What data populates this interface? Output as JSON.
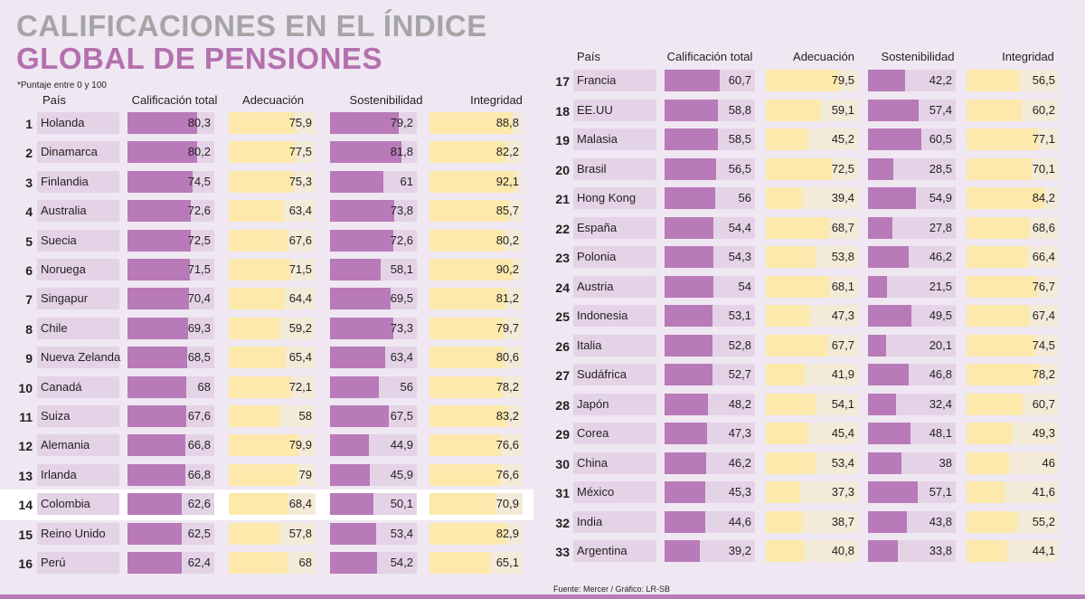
{
  "title_line1": "CALIFICACIONES EN EL ÍNDICE",
  "title_line2": "GLOBAL DE PENSIONES",
  "note": "*Puntaje entre 0 y 100",
  "source": "Fuente:  Mercer  / Gráfico: LR-SB",
  "highlight": "Colombia",
  "colors": {
    "background": "#efe7f1",
    "purple": "#b87ab8",
    "purple_light": "#e4d3e6",
    "yellow": "#fce9ab",
    "yellow_light": "#f3ead8",
    "title_gray": "#a5a5a5",
    "title_purple": "#b470ae"
  },
  "chart_data": {
    "type": "table",
    "title": "Calificaciones en el Índice Global de Pensiones",
    "scale": [
      0,
      100
    ],
    "columns": [
      "País",
      "Calificación total",
      "Adecuación",
      "Sostenibilidad",
      "Integridad"
    ],
    "rows": [
      {
        "rank": "1",
        "country": "Holanda",
        "values": [
          "80,3",
          "75,9",
          "79,2",
          "88,8"
        ]
      },
      {
        "rank": "2",
        "country": "Dinamarca",
        "values": [
          "80,2",
          "77,5",
          "81,8",
          "82,2"
        ]
      },
      {
        "rank": "3",
        "country": "Finlandia",
        "values": [
          "74,5",
          "75,3",
          "61",
          "92,1"
        ]
      },
      {
        "rank": "4",
        "country": "Australia",
        "values": [
          "72,6",
          "63,4",
          "73,8",
          "85,7"
        ]
      },
      {
        "rank": "5",
        "country": "Suecia",
        "values": [
          "72,5",
          "67,6",
          "72,6",
          "80,2"
        ]
      },
      {
        "rank": "6",
        "country": "Noruega",
        "values": [
          "71,5",
          "71,5",
          "58,1",
          "90,2"
        ]
      },
      {
        "rank": "7",
        "country": "Singapur",
        "values": [
          "70,4",
          "64,4",
          "69,5",
          "81,2"
        ]
      },
      {
        "rank": "8",
        "country": "Chile",
        "values": [
          "69,3",
          "59,2",
          "73,3",
          "79,7"
        ]
      },
      {
        "rank": "9",
        "country": "Nueva Zelanda",
        "values": [
          "68,5",
          "65,4",
          "63,4",
          "80,6"
        ]
      },
      {
        "rank": "10",
        "country": "Canadá",
        "values": [
          "68",
          "72,1",
          "56",
          "78,2"
        ]
      },
      {
        "rank": "11",
        "country": "Suiza",
        "values": [
          "67,6",
          "58",
          "67,5",
          "83,2"
        ]
      },
      {
        "rank": "12",
        "country": "Alemania",
        "values": [
          "66,8",
          "79,9",
          "44,9",
          "76,6"
        ]
      },
      {
        "rank": "13",
        "country": "Irlanda",
        "values": [
          "66,8",
          "79",
          "45,9",
          "76,6"
        ]
      },
      {
        "rank": "14",
        "country": "Colombia",
        "values": [
          "62,6",
          "68,4",
          "50,1",
          "70,9"
        ]
      },
      {
        "rank": "15",
        "country": "Reino Unido",
        "values": [
          "62,5",
          "57,8",
          "53,4",
          "82,9"
        ]
      },
      {
        "rank": "16",
        "country": "Perú",
        "values": [
          "62,4",
          "68",
          "54,2",
          "65,1"
        ]
      },
      {
        "rank": "17",
        "country": "Francia",
        "values": [
          "60,7",
          "79,5",
          "42,2",
          "56,5"
        ]
      },
      {
        "rank": "18",
        "country": "EE.UU",
        "values": [
          "58,8",
          "59,1",
          "57,4",
          "60,2"
        ]
      },
      {
        "rank": "19",
        "country": "Malasia",
        "values": [
          "58,5",
          "45,2",
          "60,5",
          "77,1"
        ]
      },
      {
        "rank": "20",
        "country": "Brasil",
        "values": [
          "56,5",
          "72,5",
          "28,5",
          "70,1"
        ]
      },
      {
        "rank": "21",
        "country": "Hong Kong",
        "values": [
          "56",
          "39,4",
          "54,9",
          "84,2"
        ]
      },
      {
        "rank": "22",
        "country": "España",
        "values": [
          "54,4",
          "68,7",
          "27,8",
          "68,6"
        ]
      },
      {
        "rank": "23",
        "country": "Polonia",
        "values": [
          "54,3",
          "53,8",
          "46,2",
          "66,4"
        ]
      },
      {
        "rank": "24",
        "country": "Austria",
        "values": [
          "54",
          "68,1",
          "21,5",
          "76,7"
        ]
      },
      {
        "rank": "25",
        "country": "Indonesia",
        "values": [
          "53,1",
          "47,3",
          "49,5",
          "67,4"
        ]
      },
      {
        "rank": "26",
        "country": "Italia",
        "values": [
          "52,8",
          "67,7",
          "20,1",
          "74,5"
        ]
      },
      {
        "rank": "27",
        "country": "Sudáfrica",
        "values": [
          "52,7",
          "41,9",
          "46,8",
          "78,2"
        ]
      },
      {
        "rank": "28",
        "country": "Japón",
        "values": [
          "48,2",
          "54,1",
          "32,4",
          "60,7"
        ]
      },
      {
        "rank": "29",
        "country": "Corea",
        "values": [
          "47,3",
          "45,4",
          "48,1",
          "49,3"
        ]
      },
      {
        "rank": "30",
        "country": "China",
        "values": [
          "46,2",
          "53,4",
          "38",
          "46"
        ]
      },
      {
        "rank": "31",
        "country": "México",
        "values": [
          "45,3",
          "37,3",
          "57,1",
          "41,6"
        ]
      },
      {
        "rank": "32",
        "country": "India",
        "values": [
          "44,6",
          "38,7",
          "43,8",
          "55,2"
        ]
      },
      {
        "rank": "33",
        "country": "Argentina",
        "values": [
          "39,2",
          "40,8",
          "33,8",
          "44,1"
        ]
      }
    ]
  }
}
